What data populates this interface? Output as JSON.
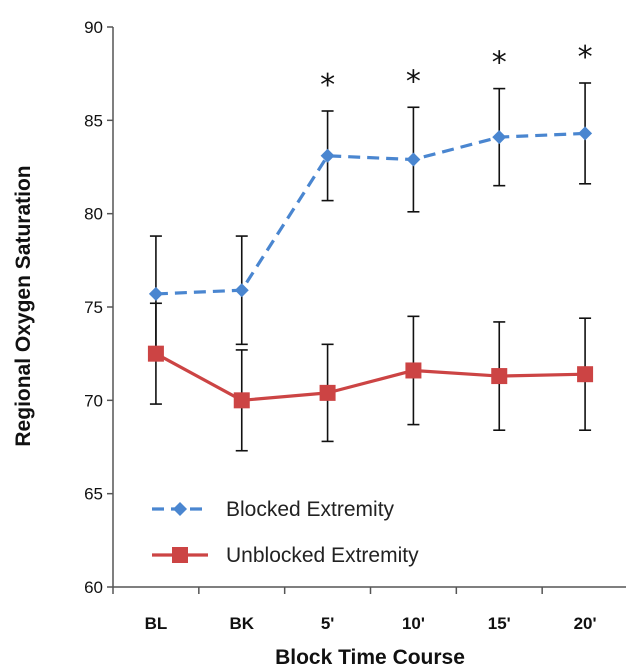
{
  "chart_data": {
    "type": "line",
    "xlabel": "Block Time Course",
    "ylabel": "Regional Oxygen Saturation",
    "categories": [
      "BL",
      "BK",
      "5'",
      "10'",
      "15'",
      "20'"
    ],
    "ylim": [
      60,
      90
    ],
    "yticks": [
      60,
      65,
      70,
      75,
      80,
      85,
      90
    ],
    "grid": false,
    "legend_position": "bottom-left",
    "series": [
      {
        "name": "Blocked Extremity",
        "values": [
          75.7,
          75.9,
          83.1,
          82.9,
          84.1,
          84.3
        ],
        "error": [
          3.1,
          2.9,
          2.4,
          2.8,
          2.6,
          2.7
        ],
        "color": "#4a86d0",
        "marker": "diamond",
        "line_style": "dashed"
      },
      {
        "name": "Unblocked Extremity",
        "values": [
          72.5,
          70.0,
          70.4,
          71.6,
          71.3,
          71.4
        ],
        "error": [
          2.7,
          2.7,
          2.6,
          2.9,
          2.9,
          3.0
        ],
        "color": "#cc4444",
        "marker": "square",
        "line_style": "solid"
      }
    ],
    "annotations": [
      {
        "category": "5'",
        "text": "*"
      },
      {
        "category": "10'",
        "text": "*"
      },
      {
        "category": "15'",
        "text": "*"
      },
      {
        "category": "20'",
        "text": "*"
      }
    ]
  }
}
